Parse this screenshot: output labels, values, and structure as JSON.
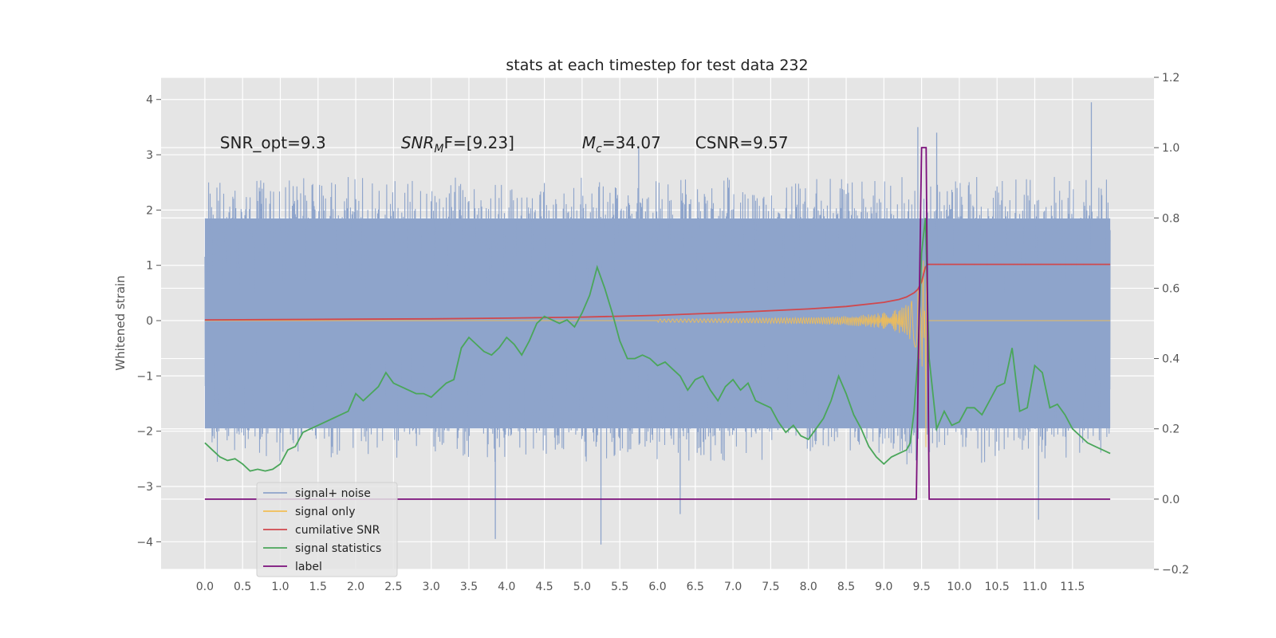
{
  "chart_data": {
    "type": "line",
    "title": "stats at each timestep for test data 232",
    "ylabel": "Whitened strain",
    "y2label": "",
    "xlim": [
      -0.58,
      12.58
    ],
    "ylim": [
      -4.5,
      4.4
    ],
    "y2lim": [
      -0.2,
      1.2
    ],
    "grid": true,
    "legend_position": "lower-left",
    "x_ticks": [
      "0.0",
      "0.5",
      "1.0",
      "1.5",
      "2.0",
      "2.5",
      "3.0",
      "3.5",
      "4.0",
      "4.5",
      "5.0",
      "5.5",
      "6.0",
      "6.5",
      "7.0",
      "7.5",
      "8.0",
      "8.5",
      "9.0",
      "9.5",
      "10.0",
      "10.5",
      "11.0",
      "11.5"
    ],
    "y_ticks": [
      "4",
      "3",
      "2",
      "1",
      "0",
      "−1",
      "−2",
      "−3",
      "−4"
    ],
    "y2_ticks": [
      "1.2",
      "1.0",
      "0.8",
      "0.6",
      "0.4",
      "0.2",
      "0.0",
      "−0.2"
    ],
    "annotations": [
      {
        "text": "SNR_opt=9.3",
        "x": 0.2,
        "y": 3.2
      },
      {
        "base": "SNR",
        "sub": "M",
        "after": "F=[9.23]",
        "x": 2.6,
        "y": 3.2
      },
      {
        "base": "M",
        "sub": "c",
        "after": "=34.07",
        "x": 5.0,
        "y": 3.2
      },
      {
        "text": "CSNR=9.57",
        "x": 6.5,
        "y": 3.2
      }
    ],
    "colors": {
      "background": "#e5e5e5",
      "grid": "#ffffff",
      "noise": "#8ea4cb",
      "signal": "#f2be55",
      "cumulative": "#d0484d",
      "statistics": "#4aa65a",
      "label": "#7b0f7b"
    },
    "series": [
      {
        "name": "signal+ noise",
        "axis": "left",
        "color": "#8ea4cb",
        "x_range": [
          0.0,
          12.0
        ],
        "noise_band": [
          -2.2,
          2.2
        ],
        "extreme_spikes": [
          {
            "x": 3.85,
            "y": -3.95
          },
          {
            "x": 5.25,
            "y": -4.05
          },
          {
            "x": 11.05,
            "y": -3.6
          },
          {
            "x": 11.75,
            "y": 3.95
          },
          {
            "x": 9.45,
            "y": 3.5
          },
          {
            "x": 6.3,
            "y": -3.5
          },
          {
            "x": 9.7,
            "y": 3.4
          },
          {
            "x": 5.75,
            "y": 3.15
          }
        ]
      },
      {
        "name": "signal only",
        "axis": "left",
        "color": "#f2be55",
        "chirp_start": 6.0,
        "merger": 9.55,
        "peak_amplitude": 2.3
      },
      {
        "name": "cumilative SNR",
        "axis": "right",
        "color": "#d0484d",
        "x": [
          0.0,
          1.0,
          2.0,
          3.0,
          4.0,
          5.0,
          6.0,
          7.0,
          8.0,
          8.5,
          9.0,
          9.2,
          9.3,
          9.4,
          9.45,
          9.5,
          9.55,
          9.58,
          10.0,
          11.0,
          12.0
        ],
        "values": [
          0.51,
          0.511,
          0.512,
          0.513,
          0.515,
          0.518,
          0.523,
          0.531,
          0.541,
          0.548,
          0.56,
          0.568,
          0.575,
          0.587,
          0.597,
          0.618,
          0.66,
          0.668,
          0.668,
          0.668,
          0.668
        ]
      },
      {
        "name": "signal statistics",
        "axis": "right",
        "color": "#4aa65a",
        "x": [
          0.0,
          0.1,
          0.2,
          0.3,
          0.4,
          0.5,
          0.6,
          0.7,
          0.8,
          0.9,
          1.0,
          1.1,
          1.2,
          1.3,
          1.4,
          1.5,
          1.6,
          1.7,
          1.8,
          1.9,
          2.0,
          2.1,
          2.2,
          2.3,
          2.4,
          2.5,
          2.6,
          2.7,
          2.8,
          2.9,
          3.0,
          3.1,
          3.2,
          3.3,
          3.4,
          3.5,
          3.6,
          3.7,
          3.8,
          3.9,
          4.0,
          4.1,
          4.2,
          4.3,
          4.4,
          4.5,
          4.6,
          4.7,
          4.8,
          4.9,
          5.0,
          5.1,
          5.2,
          5.3,
          5.4,
          5.5,
          5.6,
          5.7,
          5.8,
          5.9,
          6.0,
          6.1,
          6.2,
          6.3,
          6.4,
          6.5,
          6.6,
          6.7,
          6.8,
          6.9,
          7.0,
          7.1,
          7.2,
          7.3,
          7.4,
          7.5,
          7.6,
          7.7,
          7.8,
          7.9,
          8.0,
          8.1,
          8.2,
          8.3,
          8.4,
          8.5,
          8.6,
          8.7,
          8.8,
          8.9,
          9.0,
          9.1,
          9.2,
          9.3,
          9.35,
          9.4,
          9.45,
          9.5,
          9.55,
          9.6,
          9.7,
          9.8,
          9.9,
          10.0,
          10.1,
          10.2,
          10.3,
          10.4,
          10.5,
          10.6,
          10.7,
          10.8,
          10.9,
          11.0,
          11.1,
          11.2,
          11.3,
          11.4,
          11.5,
          11.6,
          11.7,
          11.8,
          11.9,
          12.0
        ],
        "values": [
          0.16,
          0.14,
          0.12,
          0.11,
          0.115,
          0.1,
          0.08,
          0.085,
          0.08,
          0.085,
          0.1,
          0.14,
          0.15,
          0.19,
          0.2,
          0.21,
          0.22,
          0.23,
          0.24,
          0.25,
          0.3,
          0.28,
          0.3,
          0.32,
          0.36,
          0.33,
          0.32,
          0.31,
          0.3,
          0.3,
          0.29,
          0.31,
          0.33,
          0.34,
          0.43,
          0.46,
          0.44,
          0.42,
          0.41,
          0.43,
          0.46,
          0.44,
          0.41,
          0.45,
          0.5,
          0.52,
          0.51,
          0.5,
          0.51,
          0.49,
          0.53,
          0.58,
          0.66,
          0.6,
          0.53,
          0.45,
          0.4,
          0.4,
          0.41,
          0.4,
          0.38,
          0.39,
          0.37,
          0.35,
          0.31,
          0.34,
          0.35,
          0.31,
          0.28,
          0.32,
          0.34,
          0.31,
          0.33,
          0.28,
          0.27,
          0.26,
          0.22,
          0.19,
          0.21,
          0.18,
          0.17,
          0.2,
          0.23,
          0.28,
          0.35,
          0.3,
          0.24,
          0.2,
          0.15,
          0.12,
          0.1,
          0.12,
          0.13,
          0.14,
          0.16,
          0.25,
          0.4,
          0.7,
          0.8,
          0.4,
          0.2,
          0.25,
          0.21,
          0.22,
          0.26,
          0.26,
          0.24,
          0.28,
          0.32,
          0.33,
          0.43,
          0.25,
          0.26,
          0.38,
          0.36,
          0.26,
          0.27,
          0.24,
          0.2,
          0.18,
          0.16,
          0.15,
          0.14,
          0.13
        ]
      },
      {
        "name": "label",
        "axis": "right",
        "color": "#7b0f7b",
        "x": [
          0.0,
          9.43,
          9.5,
          9.56,
          9.6,
          12.0
        ],
        "values": [
          0.0,
          0.0,
          1.0,
          1.0,
          0.0,
          0.0
        ]
      }
    ],
    "legend": [
      "signal+ noise",
      "signal only",
      "cumilative SNR",
      "signal statistics",
      "label"
    ]
  }
}
